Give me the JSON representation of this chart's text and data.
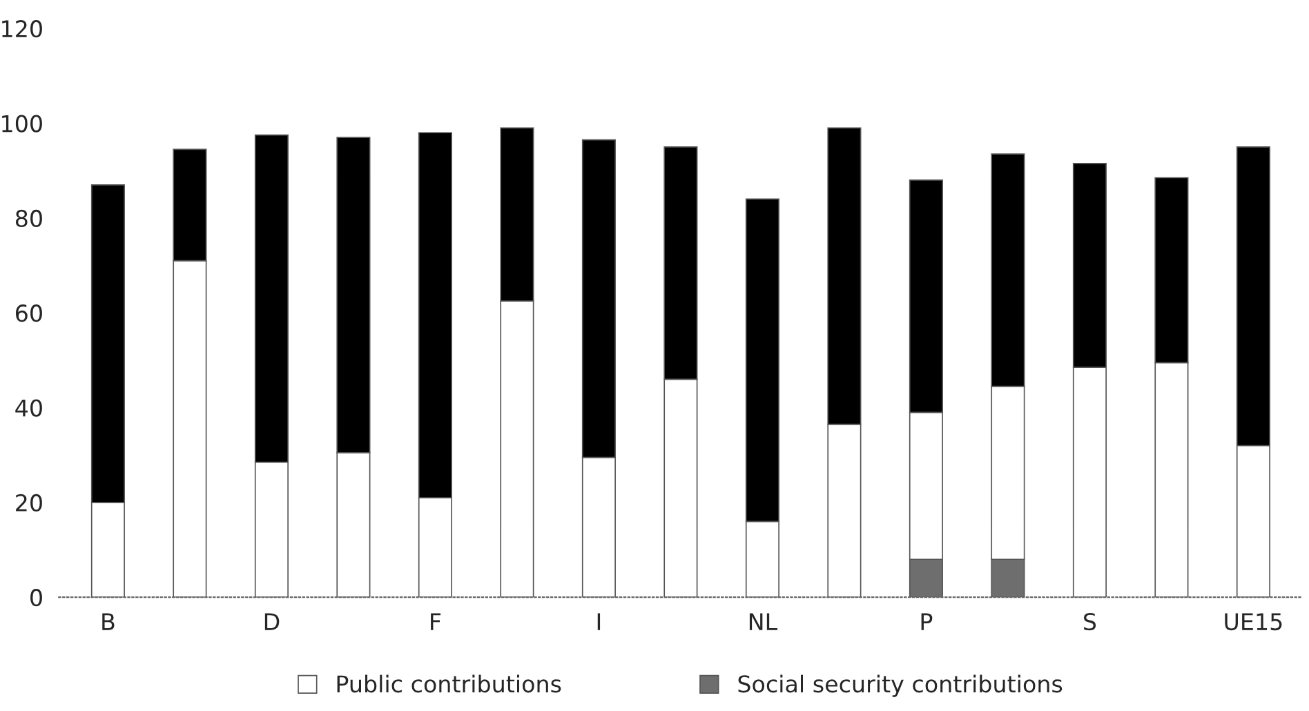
{
  "chart_data": {
    "type": "bar",
    "stacked": true,
    "categories": [
      "B",
      null,
      "D",
      null,
      "F",
      null,
      "I",
      null,
      "NL",
      null,
      "P",
      null,
      "S",
      null,
      "UE15"
    ],
    "series": [
      {
        "name": "Social security contributions",
        "color": "#6e6e6e",
        "values": [
          0,
          0,
          0,
          0,
          0,
          0,
          0,
          0,
          0,
          0,
          8,
          8,
          0,
          0,
          0
        ]
      },
      {
        "name": "Public contributions",
        "color": "#ffffff",
        "values": [
          20,
          71,
          28.5,
          30.5,
          21,
          62.5,
          29.5,
          46,
          16,
          36.5,
          31,
          36.5,
          48.5,
          49.5,
          32
        ]
      },
      {
        "color": "#000000",
        "values": [
          67,
          23.5,
          69,
          66.5,
          77,
          36.5,
          67,
          49,
          68,
          62.5,
          49,
          49,
          43,
          39,
          63
        ]
      }
    ],
    "ylim": [
      0,
      120
    ],
    "yticks": [
      0,
      20,
      40,
      60,
      80,
      100,
      120
    ],
    "grid": false,
    "legend": "bottom"
  }
}
